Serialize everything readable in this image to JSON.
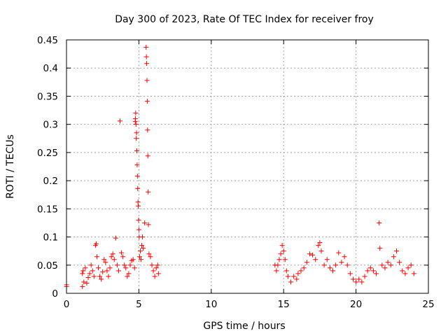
{
  "chart_data": {
    "type": "scatter",
    "title": "Day 300 of 2023, Rate Of TEC Index for receiver froy",
    "xlabel": "GPS time / hours",
    "ylabel": "ROTI / TECUs",
    "xlim": [
      0,
      25
    ],
    "ylim": [
      0,
      0.45
    ],
    "xticks": [
      0,
      5,
      10,
      15,
      20,
      25
    ],
    "xtick_labels": [
      "0",
      "5",
      "10",
      "15",
      "20",
      "25"
    ],
    "yticks": [
      0,
      0.05,
      0.1,
      0.15,
      0.2,
      0.25,
      0.3,
      0.35,
      0.4,
      0.45
    ],
    "ytick_labels": [
      "0",
      "0.05",
      "0.1",
      "0.15",
      "0.2",
      "0.25",
      "0.3",
      "0.35",
      "0.4",
      "0.45"
    ],
    "grid": true,
    "marker": "+",
    "color": "#ff0000",
    "series": [
      {
        "points": [
          [
            0.0,
            0.012
          ],
          [
            0.0,
            0.015
          ],
          [
            1.1,
            0.012
          ],
          [
            1.1,
            0.035
          ],
          [
            1.15,
            0.04
          ],
          [
            1.2,
            0.02
          ],
          [
            1.3,
            0.045
          ],
          [
            1.4,
            0.018
          ],
          [
            1.5,
            0.028
          ],
          [
            1.6,
            0.035
          ],
          [
            1.7,
            0.05
          ],
          [
            1.8,
            0.04
          ],
          [
            1.9,
            0.03
          ],
          [
            2.0,
            0.085
          ],
          [
            2.05,
            0.088
          ],
          [
            2.1,
            0.065
          ],
          [
            2.2,
            0.045
          ],
          [
            2.3,
            0.03
          ],
          [
            2.4,
            0.025
          ],
          [
            2.5,
            0.038
          ],
          [
            2.6,
            0.06
          ],
          [
            2.7,
            0.055
          ],
          [
            2.8,
            0.04
          ],
          [
            2.9,
            0.03
          ],
          [
            3.0,
            0.045
          ],
          [
            3.1,
            0.065
          ],
          [
            3.2,
            0.07
          ],
          [
            3.3,
            0.06
          ],
          [
            3.4,
            0.098
          ],
          [
            3.5,
            0.05
          ],
          [
            3.6,
            0.04
          ],
          [
            3.7,
            0.306
          ],
          [
            3.8,
            0.072
          ],
          [
            3.9,
            0.065
          ],
          [
            4.0,
            0.05
          ],
          [
            4.1,
            0.045
          ],
          [
            4.2,
            0.03
          ],
          [
            4.3,
            0.035
          ],
          [
            4.4,
            0.05
          ],
          [
            4.5,
            0.058
          ],
          [
            4.6,
            0.06
          ],
          [
            4.7,
            0.045
          ],
          [
            4.75,
            0.305
          ],
          [
            4.76,
            0.31
          ],
          [
            4.78,
            0.32
          ],
          [
            4.8,
            0.3
          ],
          [
            4.82,
            0.275
          ],
          [
            4.84,
            0.285
          ],
          [
            4.86,
            0.253
          ],
          [
            4.88,
            0.228
          ],
          [
            4.9,
            0.208
          ],
          [
            4.92,
            0.186
          ],
          [
            4.94,
            0.162
          ],
          [
            4.96,
            0.155
          ],
          [
            4.98,
            0.13
          ],
          [
            5.0,
            0.113
          ],
          [
            5.02,
            0.1
          ],
          [
            5.05,
            0.065
          ],
          [
            5.1,
            0.075
          ],
          [
            5.15,
            0.06
          ],
          [
            5.2,
            0.085
          ],
          [
            5.25,
            0.1
          ],
          [
            5.3,
            0.08
          ],
          [
            5.4,
            0.125
          ],
          [
            5.5,
            0.437
          ],
          [
            5.52,
            0.42
          ],
          [
            5.54,
            0.408
          ],
          [
            5.56,
            0.378
          ],
          [
            5.58,
            0.341
          ],
          [
            5.6,
            0.29
          ],
          [
            5.62,
            0.244
          ],
          [
            5.64,
            0.18
          ],
          [
            5.66,
            0.122
          ],
          [
            5.7,
            0.07
          ],
          [
            5.8,
            0.065
          ],
          [
            5.9,
            0.05
          ],
          [
            6.0,
            0.04
          ],
          [
            6.1,
            0.03
          ],
          [
            6.2,
            0.045
          ],
          [
            6.3,
            0.05
          ],
          [
            6.35,
            0.035
          ],
          [
            14.4,
            0.05
          ],
          [
            14.5,
            0.04
          ],
          [
            14.6,
            0.05
          ],
          [
            14.7,
            0.06
          ],
          [
            14.8,
            0.07
          ],
          [
            14.9,
            0.085
          ],
          [
            15.0,
            0.075
          ],
          [
            15.1,
            0.06
          ],
          [
            15.2,
            0.04
          ],
          [
            15.3,
            0.03
          ],
          [
            15.5,
            0.02
          ],
          [
            15.7,
            0.03
          ],
          [
            15.9,
            0.025
          ],
          [
            16.0,
            0.035
          ],
          [
            16.2,
            0.04
          ],
          [
            16.4,
            0.045
          ],
          [
            16.6,
            0.055
          ],
          [
            16.8,
            0.07
          ],
          [
            17.0,
            0.068
          ],
          [
            17.2,
            0.06
          ],
          [
            17.4,
            0.085
          ],
          [
            17.5,
            0.09
          ],
          [
            17.6,
            0.075
          ],
          [
            17.8,
            0.05
          ],
          [
            18.0,
            0.06
          ],
          [
            18.2,
            0.045
          ],
          [
            18.4,
            0.04
          ],
          [
            18.6,
            0.05
          ],
          [
            18.8,
            0.072
          ],
          [
            19.0,
            0.055
          ],
          [
            19.2,
            0.065
          ],
          [
            19.4,
            0.05
          ],
          [
            19.6,
            0.035
          ],
          [
            19.8,
            0.025
          ],
          [
            20.0,
            0.02
          ],
          [
            20.2,
            0.025
          ],
          [
            20.4,
            0.02
          ],
          [
            20.6,
            0.03
          ],
          [
            20.8,
            0.04
          ],
          [
            21.0,
            0.045
          ],
          [
            21.2,
            0.04
          ],
          [
            21.4,
            0.035
          ],
          [
            21.6,
            0.125
          ],
          [
            21.65,
            0.08
          ],
          [
            21.8,
            0.05
          ],
          [
            22.0,
            0.045
          ],
          [
            22.2,
            0.055
          ],
          [
            22.4,
            0.05
          ],
          [
            22.6,
            0.065
          ],
          [
            22.8,
            0.075
          ],
          [
            23.0,
            0.055
          ],
          [
            23.2,
            0.04
          ],
          [
            23.4,
            0.035
          ],
          [
            23.6,
            0.045
          ],
          [
            23.8,
            0.05
          ],
          [
            24.0,
            0.035
          ]
        ]
      }
    ]
  }
}
